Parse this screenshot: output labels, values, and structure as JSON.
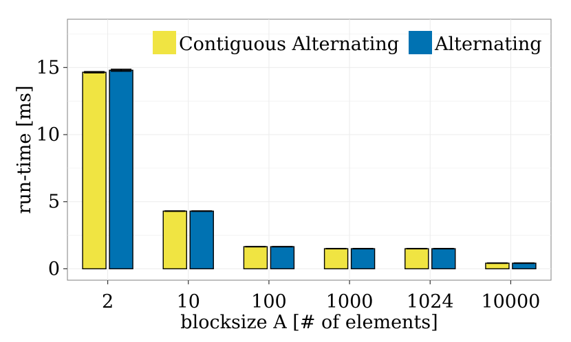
{
  "chart_data": {
    "type": "bar",
    "categories": [
      "2",
      "10",
      "100",
      "1000",
      "1024",
      "10000"
    ],
    "series": [
      {
        "name": "Contiguous Alternating",
        "color": "#f0e442",
        "values": [
          14.65,
          4.3,
          1.65,
          1.5,
          1.5,
          0.42
        ],
        "errors": [
          0.05,
          0.02,
          0.02,
          0.02,
          0.02,
          0.02
        ]
      },
      {
        "name": "Alternating",
        "color": "#0072b2",
        "values": [
          14.8,
          4.3,
          1.65,
          1.5,
          1.5,
          0.42
        ],
        "errors": [
          0.08,
          0.02,
          0.02,
          0.02,
          0.02,
          0.02
        ]
      }
    ],
    "xlabel": "blocksize A [# of elements]",
    "ylabel": "run-time [ms]",
    "ylim": [
      -0.85,
      18.6
    ],
    "yticks": [
      0,
      5,
      10,
      15
    ],
    "grid": true,
    "legend_position": "top-right"
  }
}
